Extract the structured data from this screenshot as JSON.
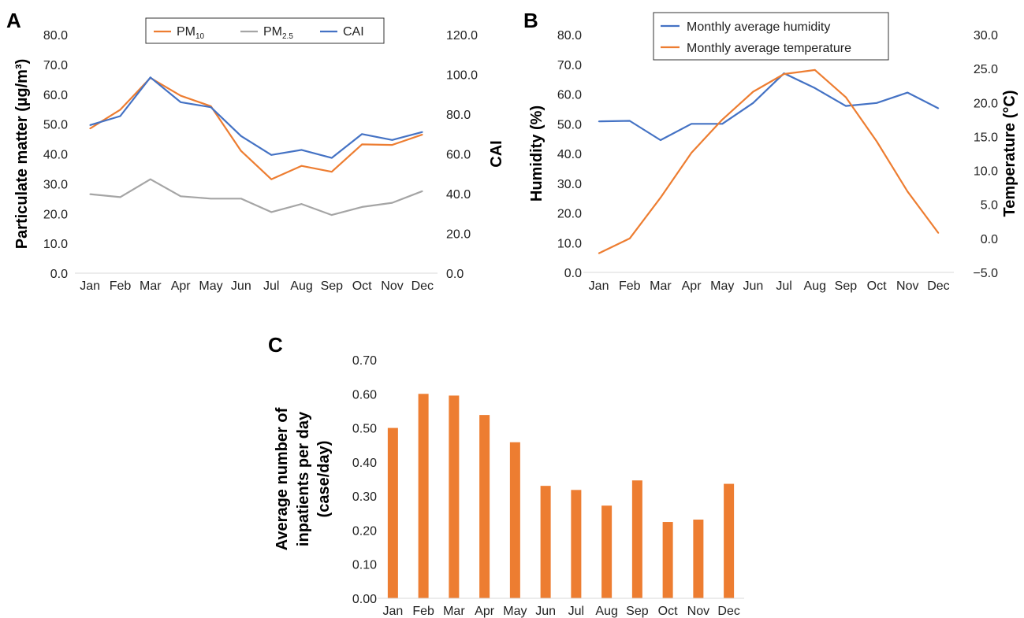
{
  "chart_data": [
    {
      "panel": "A",
      "type": "line",
      "categories": [
        "Jan",
        "Feb",
        "Mar",
        "Apr",
        "May",
        "Jun",
        "Jul",
        "Aug",
        "Sep",
        "Oct",
        "Nov",
        "Dec"
      ],
      "ylabel": "Particulate matter (µg/m³)",
      "y2label": "CAI",
      "ylim": [
        0,
        80
      ],
      "y2lim": [
        0,
        120
      ],
      "yticks": [
        "0.0",
        "10.0",
        "20.0",
        "30.0",
        "40.0",
        "50.0",
        "60.0",
        "70.0",
        "80.0"
      ],
      "y2ticks": [
        "0.0",
        "20.0",
        "40.0",
        "60.0",
        "80.0",
        "100.0",
        "120.0"
      ],
      "legend_position": "top-center",
      "grid": false,
      "series": [
        {
          "name": "PM",
          "name_sub": "10",
          "axis": "left",
          "color": "#ED7D31",
          "values": [
            48.5,
            54.8,
            65.5,
            59.5,
            56.0,
            41.0,
            31.5,
            36.0,
            34.0,
            43.2,
            43.0,
            46.5
          ]
        },
        {
          "name": "PM",
          "name_sub": "2.5",
          "axis": "left",
          "color": "#A5A5A5",
          "values": [
            26.5,
            25.5,
            31.5,
            25.8,
            25.0,
            25.0,
            20.5,
            23.2,
            19.5,
            22.2,
            23.6,
            27.5
          ]
        },
        {
          "name": "CAI",
          "axis": "right",
          "color": "#4472C4",
          "values": [
            74.5,
            79.0,
            98.5,
            86.0,
            83.5,
            69.0,
            59.5,
            62.0,
            58.0,
            70.0,
            67.0,
            71.0
          ]
        }
      ]
    },
    {
      "panel": "B",
      "type": "line",
      "categories": [
        "Jan",
        "Feb",
        "Mar",
        "Apr",
        "May",
        "Jun",
        "Jul",
        "Aug",
        "Sep",
        "Oct",
        "Nov",
        "Dec"
      ],
      "ylabel": "Humidity (%)",
      "y2label": "Temperature (°C)",
      "ylim": [
        0,
        80
      ],
      "y2lim": [
        -5,
        30
      ],
      "yticks": [
        "0.0",
        "10.0",
        "20.0",
        "30.0",
        "40.0",
        "50.0",
        "60.0",
        "70.0",
        "80.0"
      ],
      "y2ticks": [
        "−5.0",
        "0.0",
        "5.0",
        "10.0",
        "15.0",
        "20.0",
        "25.0",
        "30.0"
      ],
      "legend_position": "top-center",
      "grid": false,
      "series": [
        {
          "name": "Monthly average humidity",
          "axis": "left",
          "color": "#4472C4",
          "values": [
            50.8,
            51.0,
            44.5,
            50.0,
            50.0,
            57.0,
            67.0,
            62.0,
            56.0,
            57.0,
            60.5,
            55.2
          ]
        },
        {
          "name": "Monthly average temperature",
          "axis": "right",
          "color": "#ED7D31",
          "values": [
            -2.2,
            0.0,
            6.0,
            12.6,
            17.5,
            21.6,
            24.2,
            24.8,
            20.8,
            14.3,
            6.9,
            0.8
          ]
        }
      ]
    },
    {
      "panel": "C",
      "type": "bar",
      "categories": [
        "Jan",
        "Feb",
        "Mar",
        "Apr",
        "May",
        "Jun",
        "Jul",
        "Aug",
        "Sep",
        "Oct",
        "Nov",
        "Dec"
      ],
      "ylabel_lines": [
        "Average number of",
        "inpatients per day",
        "(case/day)"
      ],
      "ylim": [
        0,
        0.7
      ],
      "yticks": [
        "0.00",
        "0.10",
        "0.20",
        "0.30",
        "0.40",
        "0.50",
        "0.60",
        "0.70"
      ],
      "grid": false,
      "series": [
        {
          "color": "#ED7D31",
          "values": [
            0.5,
            0.6,
            0.595,
            0.538,
            0.458,
            0.33,
            0.318,
            0.272,
            0.346,
            0.224,
            0.231,
            0.336
          ]
        }
      ]
    }
  ]
}
